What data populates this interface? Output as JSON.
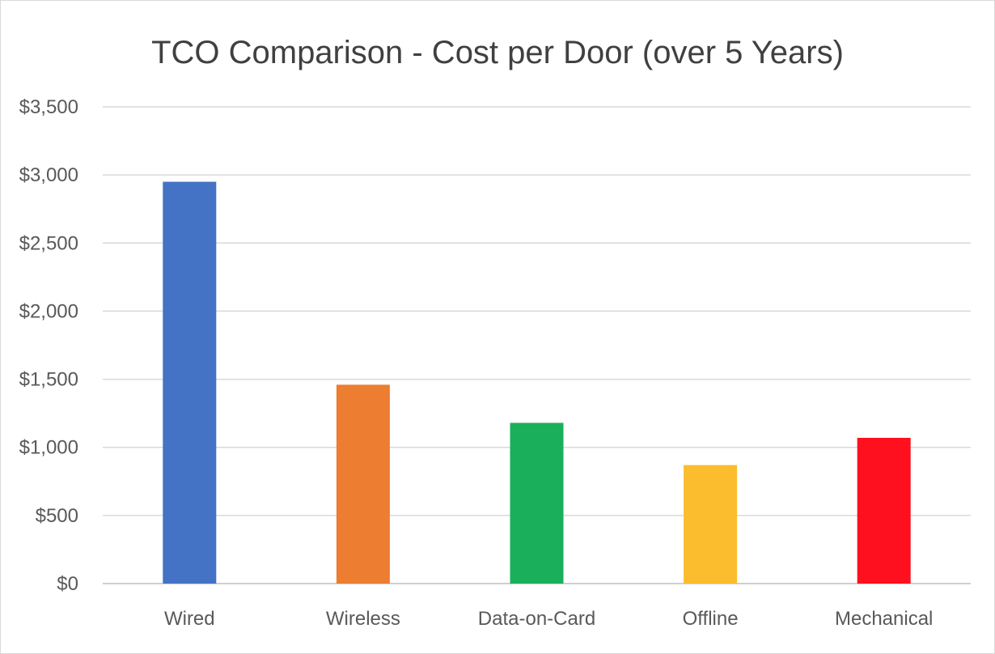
{
  "chart_data": {
    "type": "bar",
    "title": "TCO Comparison - Cost per Door (over 5 Years)",
    "xlabel": "",
    "ylabel": "",
    "categories": [
      "Wired",
      "Wireless",
      "Data-on-Card",
      "Offline",
      "Mechanical"
    ],
    "values": [
      2950,
      1460,
      1180,
      870,
      1070
    ],
    "colors": [
      "#4472C4",
      "#ED7D31",
      "#1AAF5A",
      "#FBBC2D",
      "#FF101E"
    ],
    "ylim": [
      0,
      3500
    ],
    "yticks": [
      0,
      500,
      1000,
      1500,
      2000,
      2500,
      3000,
      3500
    ],
    "ytick_labels": [
      "$0",
      "$500",
      "$1,000",
      "$1,500",
      "$2,000",
      "$2,500",
      "$3,000",
      "$3,500"
    ],
    "grid": true,
    "legend": "none"
  }
}
